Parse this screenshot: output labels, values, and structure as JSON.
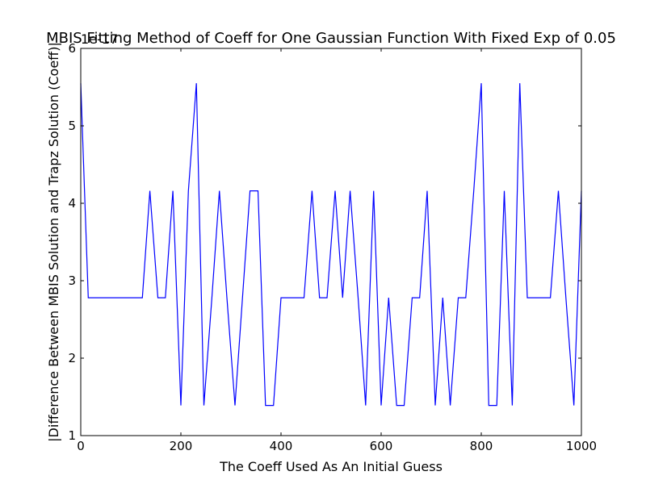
{
  "chart_data": {
    "type": "line",
    "title": "MBIS Fitting Method of Coeff for One Gaussian Function With Fixed Exp of 0.05",
    "xlabel": "The Coeff Used As An Initial Guess",
    "ylabel": "|Difference Between MBIS Solution and Trapz Solution (Coeff)|",
    "offset_text": "1e-17",
    "xlim": [
      0,
      1000
    ],
    "ylim": [
      1,
      6
    ],
    "xticks": [
      0,
      200,
      400,
      600,
      800,
      1000
    ],
    "yticks": [
      1,
      2,
      3,
      4,
      5,
      6
    ],
    "grid": false,
    "line_color": "#0000ff",
    "series": [
      {
        "x": [
          0,
          15,
          123,
          138,
          154,
          169,
          184,
          200,
          215,
          231,
          246,
          262,
          277,
          292,
          308,
          323,
          338,
          354,
          369,
          385,
          400,
          415,
          431,
          446,
          462,
          477,
          492,
          508,
          523,
          538,
          554,
          569,
          585,
          600,
          615,
          631,
          646,
          662,
          677,
          692,
          708,
          723,
          738,
          754,
          769,
          785,
          800,
          815,
          831,
          846,
          862,
          877,
          892,
          908,
          923,
          938,
          954,
          969,
          985,
          1000
        ],
        "values": [
          5.55,
          2.78,
          2.78,
          4.16,
          2.78,
          2.78,
          4.16,
          1.39,
          4.16,
          5.55,
          1.39,
          2.78,
          4.16,
          2.78,
          1.39,
          2.78,
          4.16,
          4.16,
          1.39,
          1.39,
          2.78,
          2.78,
          2.78,
          2.78,
          4.16,
          2.78,
          2.78,
          4.16,
          2.78,
          4.16,
          2.78,
          1.39,
          4.16,
          1.39,
          2.78,
          1.39,
          1.39,
          2.78,
          2.78,
          4.16,
          1.39,
          2.78,
          1.39,
          2.78,
          2.78,
          4.16,
          5.55,
          1.39,
          1.39,
          4.16,
          1.39,
          5.55,
          2.78,
          2.78,
          2.78,
          2.78,
          4.16,
          2.78,
          1.39,
          4.16
        ]
      }
    ]
  }
}
